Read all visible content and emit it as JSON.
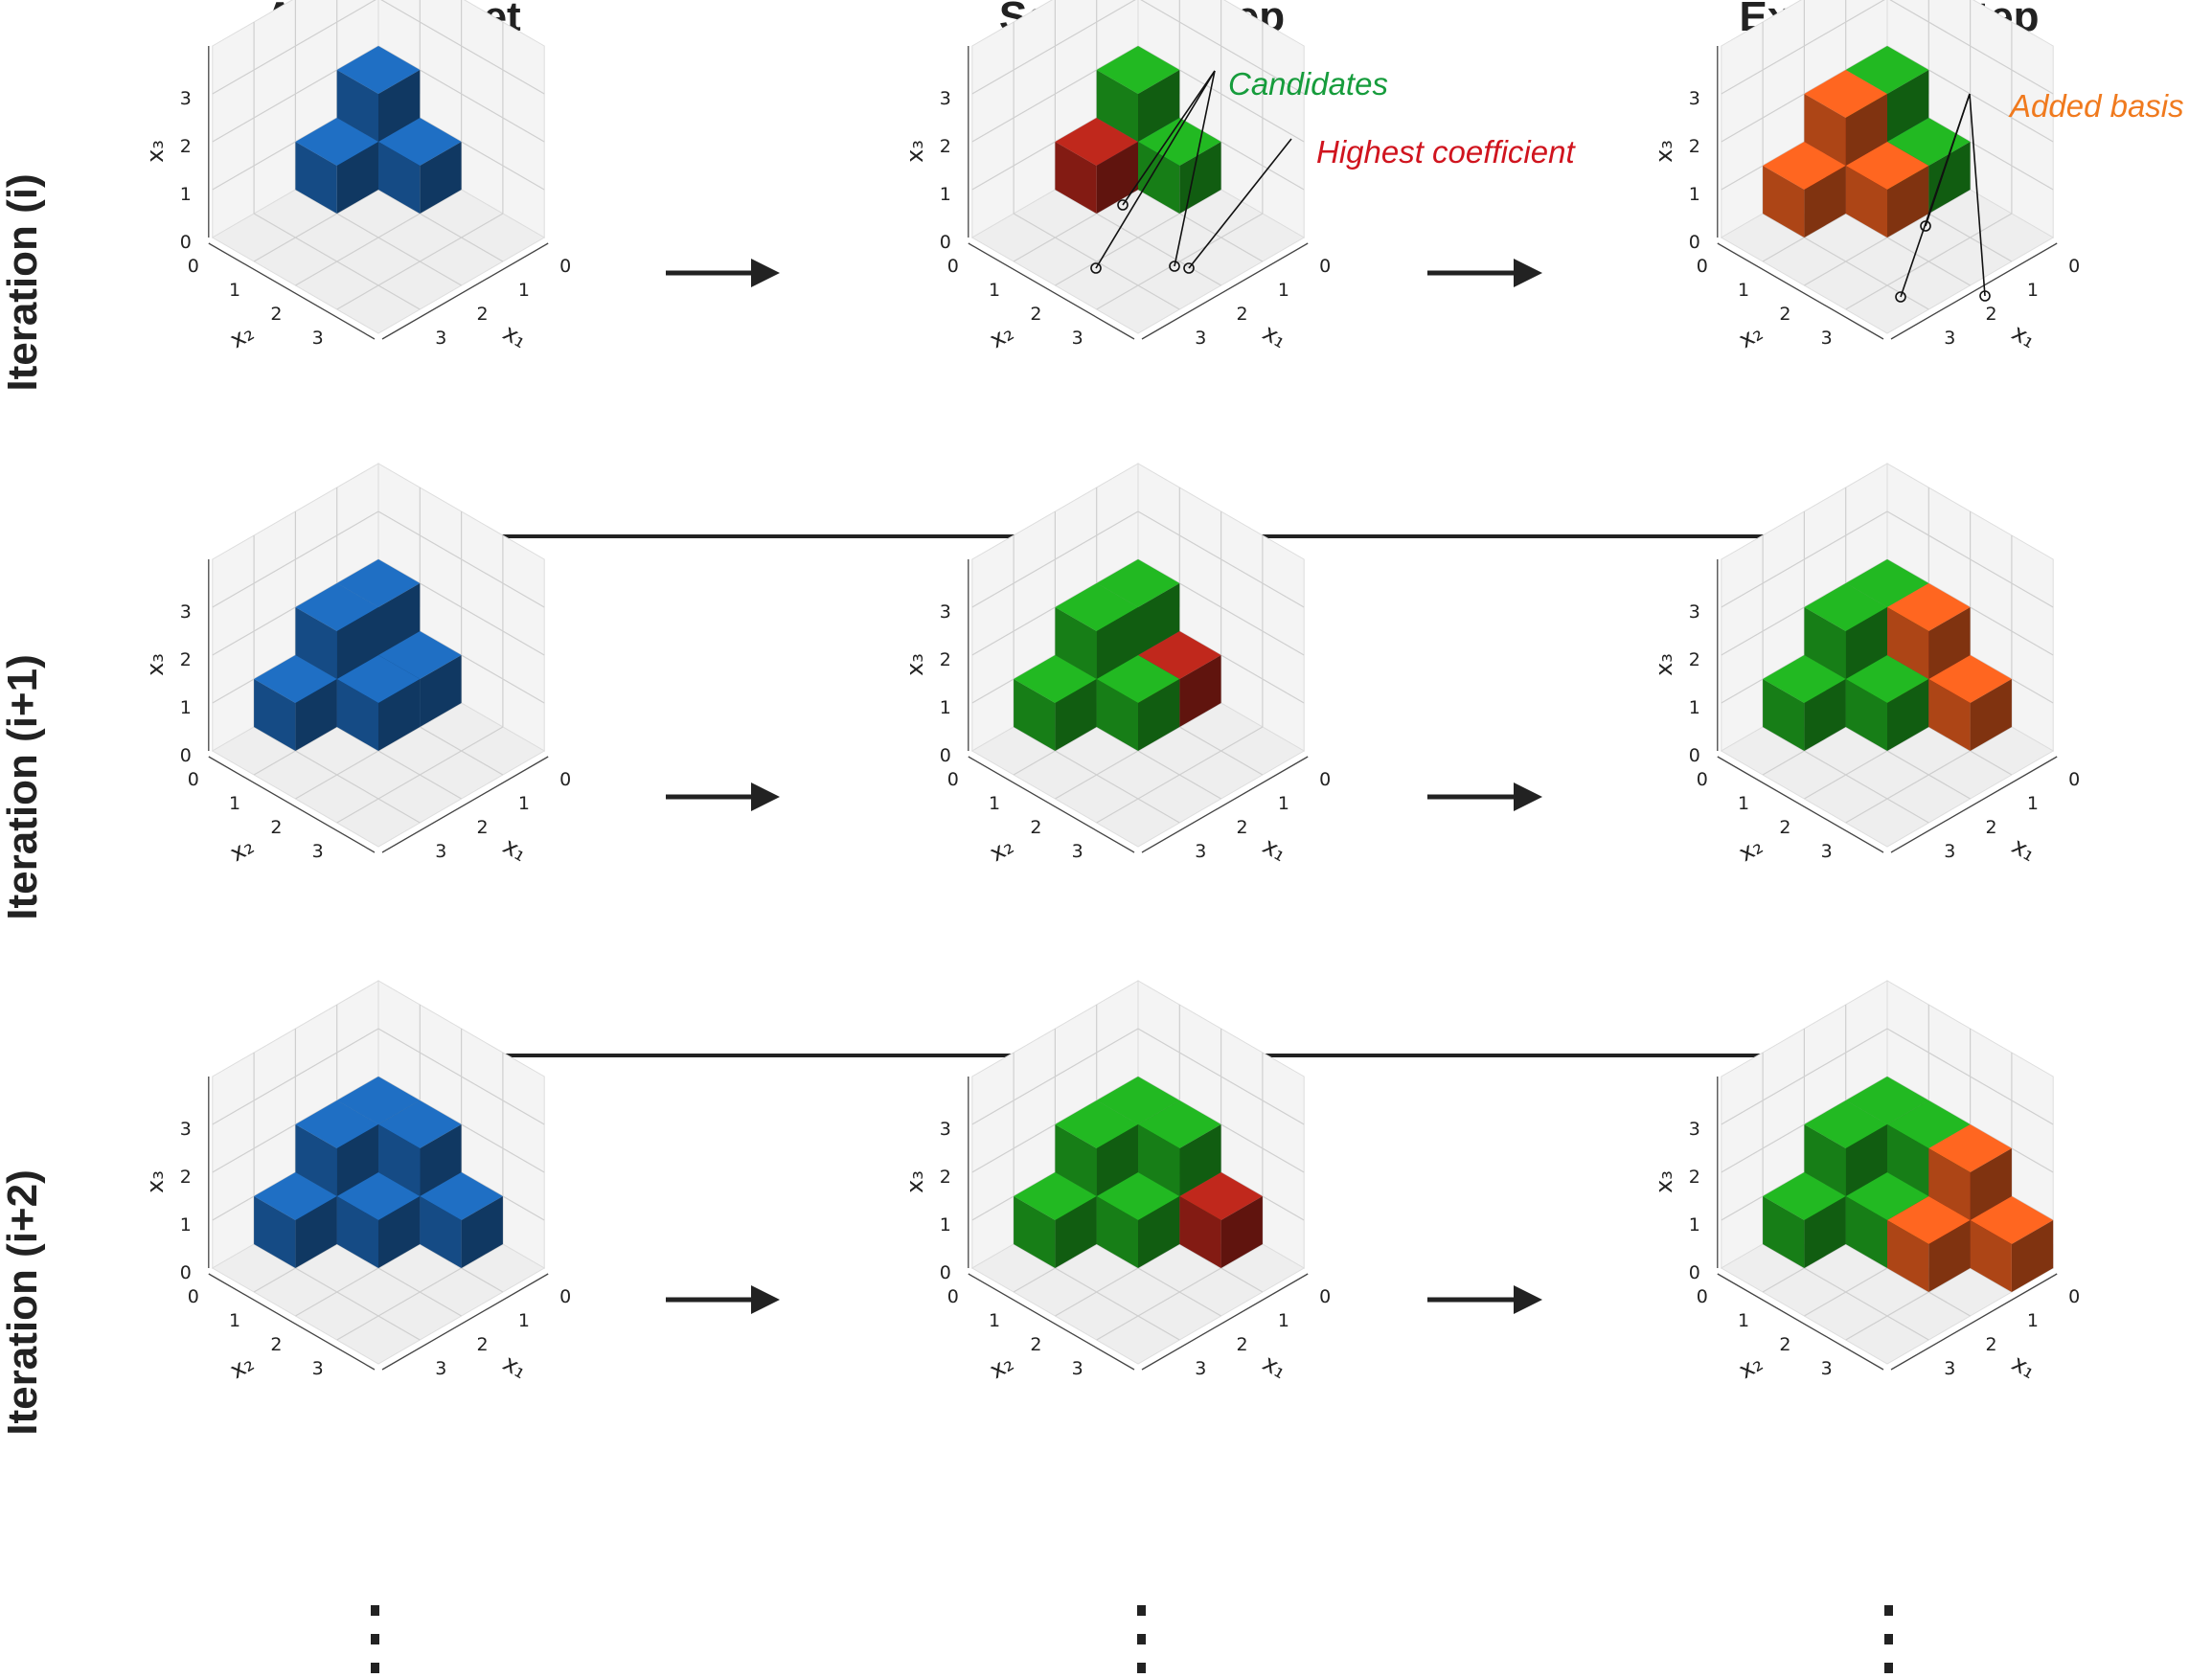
{
  "column_titles": [
    "Available set",
    "Selection step",
    "Extension step"
  ],
  "row_titles": [
    "Iteration (i)",
    "Iteration (i+1)",
    "Iteration (i+2)"
  ],
  "axes": {
    "x1_label": "x₁",
    "x2_label": "x₂",
    "x3_label": "x₃",
    "x1_ticks": [
      "0",
      "1",
      "2",
      "3"
    ],
    "x2_ticks": [
      "0",
      "1",
      "2",
      "3"
    ],
    "x3_ticks": [
      "0",
      "1",
      "2",
      "3"
    ]
  },
  "annotations": {
    "candidates": "Candidates",
    "highest": "Highest coefficient",
    "added": "Added basis"
  },
  "ellipsis": "⋮",
  "colors": {
    "available": "#1f6fc4",
    "candidate": "#22b922",
    "highest": "#c0281c",
    "added": "#ff6620",
    "candidates_text": "#169c3c",
    "highest_text": "#d0141e",
    "added_text": "#f07a1e",
    "arrow": "#222222"
  },
  "panels": [
    [
      {
        "cubes": [
          [
            0,
            0,
            0,
            "available"
          ],
          [
            1,
            0,
            0,
            "available"
          ],
          [
            0,
            1,
            0,
            "available"
          ],
          [
            0,
            0,
            1,
            "available"
          ]
        ]
      },
      {
        "cubes": [
          [
            0,
            0,
            0,
            "available"
          ],
          [
            1,
            0,
            0,
            "highest"
          ],
          [
            0,
            1,
            0,
            "candidate"
          ],
          [
            0,
            0,
            1,
            "candidate"
          ]
        ]
      },
      {
        "cubes": [
          [
            0,
            0,
            0,
            "available"
          ],
          [
            1,
            0,
            0,
            "highest"
          ],
          [
            0,
            1,
            0,
            "candidate"
          ],
          [
            0,
            0,
            1,
            "candidate"
          ],
          [
            2,
            0,
            0,
            "added"
          ],
          [
            1,
            1,
            0,
            "added"
          ],
          [
            1,
            0,
            1,
            "added"
          ]
        ]
      }
    ],
    [
      {
        "cubes": [
          [
            0,
            0,
            0,
            "available"
          ],
          [
            1,
            0,
            0,
            "available"
          ],
          [
            0,
            1,
            0,
            "available"
          ],
          [
            0,
            0,
            1,
            "available"
          ],
          [
            2,
            0,
            0,
            "available"
          ],
          [
            1,
            1,
            0,
            "available"
          ],
          [
            1,
            0,
            1,
            "available"
          ]
        ]
      },
      {
        "cubes": [
          [
            0,
            0,
            0,
            "available"
          ],
          [
            1,
            0,
            0,
            "candidate"
          ],
          [
            0,
            1,
            0,
            "highest"
          ],
          [
            0,
            0,
            1,
            "candidate"
          ],
          [
            2,
            0,
            0,
            "candidate"
          ],
          [
            1,
            1,
            0,
            "candidate"
          ],
          [
            1,
            0,
            1,
            "candidate"
          ]
        ]
      },
      {
        "cubes": [
          [
            0,
            0,
            0,
            "available"
          ],
          [
            1,
            0,
            0,
            "candidate"
          ],
          [
            0,
            1,
            0,
            "highest"
          ],
          [
            0,
            0,
            1,
            "candidate"
          ],
          [
            2,
            0,
            0,
            "candidate"
          ],
          [
            1,
            1,
            0,
            "candidate"
          ],
          [
            1,
            0,
            1,
            "candidate"
          ],
          [
            0,
            2,
            0,
            "added"
          ],
          [
            0,
            1,
            1,
            "added"
          ]
        ]
      }
    ],
    [
      {
        "cubes": [
          [
            0,
            0,
            0,
            "available"
          ],
          [
            1,
            0,
            0,
            "available"
          ],
          [
            0,
            1,
            0,
            "available"
          ],
          [
            0,
            0,
            1,
            "available"
          ],
          [
            2,
            0,
            0,
            "available"
          ],
          [
            1,
            1,
            0,
            "available"
          ],
          [
            1,
            0,
            1,
            "available"
          ],
          [
            0,
            2,
            0,
            "available"
          ],
          [
            0,
            1,
            1,
            "available"
          ]
        ]
      },
      {
        "cubes": [
          [
            0,
            0,
            0,
            "available"
          ],
          [
            1,
            0,
            0,
            "candidate"
          ],
          [
            0,
            1,
            0,
            "candidate"
          ],
          [
            0,
            0,
            1,
            "candidate"
          ],
          [
            2,
            0,
            0,
            "candidate"
          ],
          [
            1,
            1,
            0,
            "candidate"
          ],
          [
            1,
            0,
            1,
            "candidate"
          ],
          [
            0,
            2,
            0,
            "highest"
          ],
          [
            0,
            1,
            1,
            "candidate"
          ]
        ]
      },
      {
        "cubes": [
          [
            0,
            0,
            0,
            "available"
          ],
          [
            1,
            0,
            0,
            "candidate"
          ],
          [
            0,
            1,
            0,
            "candidate"
          ],
          [
            0,
            0,
            1,
            "candidate"
          ],
          [
            2,
            0,
            0,
            "candidate"
          ],
          [
            1,
            1,
            0,
            "candidate"
          ],
          [
            1,
            0,
            1,
            "candidate"
          ],
          [
            0,
            2,
            0,
            "highest"
          ],
          [
            0,
            1,
            1,
            "candidate"
          ],
          [
            0,
            3,
            0,
            "added"
          ],
          [
            1,
            2,
            0,
            "added"
          ],
          [
            0,
            2,
            1,
            "added"
          ]
        ]
      }
    ]
  ]
}
